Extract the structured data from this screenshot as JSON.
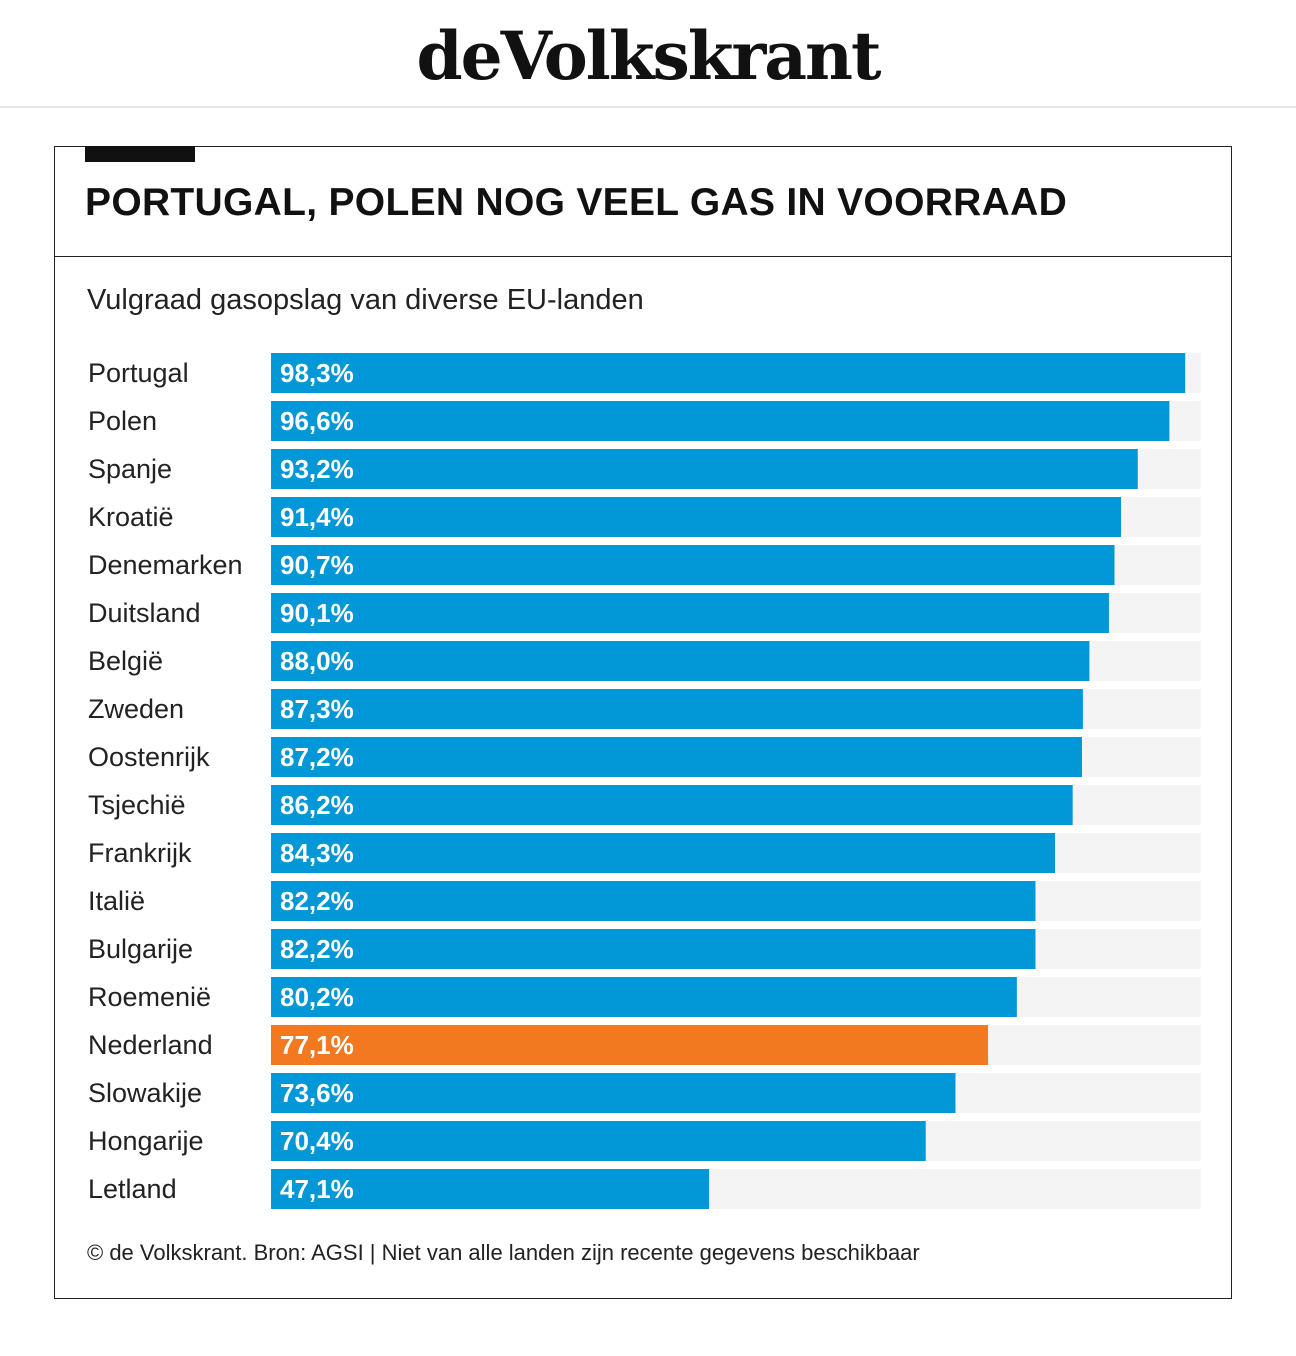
{
  "masthead": {
    "logo_text": "deVolkskrant"
  },
  "chart_data": {
    "type": "bar",
    "orientation": "horizontal",
    "title": "PORTUGAL, POLEN NOG VEEL GAS IN VOORRAAD",
    "subtitle": "Vulgraad gasopslag van diverse EU-landen",
    "categories": [
      "Portugal",
      "Polen",
      "Spanje",
      "Kroatië",
      "Denemarken",
      "Duitsland",
      "België",
      "Zweden",
      "Oostenrijk",
      "Tsjechië",
      "Frankrijk",
      "Italië",
      "Bulgarije",
      "Roemenië",
      "Nederland",
      "Slowakije",
      "Hongarije",
      "Letland"
    ],
    "values": [
      98.3,
      96.6,
      93.2,
      91.4,
      90.7,
      90.1,
      88.0,
      87.3,
      87.2,
      86.2,
      84.3,
      82.2,
      82.2,
      80.2,
      77.1,
      73.6,
      70.4,
      47.1
    ],
    "labels": [
      "98,3%",
      "96,6%",
      "93,2%",
      "91,4%",
      "90,7%",
      "90,1%",
      "88,0%",
      "87,3%",
      "87,2%",
      "86,2%",
      "84,3%",
      "82,2%",
      "82,2%",
      "80,2%",
      "77,1%",
      "73,6%",
      "70,4%",
      "47,1%"
    ],
    "xlim": [
      0,
      100
    ],
    "highlight": "Nederland",
    "colors": {
      "bar": "#0297d6",
      "highlight": "#f37920",
      "track": "#f4f4f4",
      "value_text": "#ffffff"
    },
    "grid": false,
    "legend": "none",
    "source": "© de Volkskrant. Bron: AGSI | Niet van alle landen zijn recente gegevens beschikbaar"
  }
}
